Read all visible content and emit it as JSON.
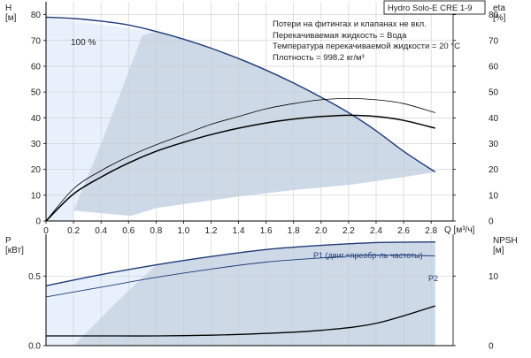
{
  "chart_data": {
    "type": "line",
    "title": "Hydro Solo-E CRE 1-9",
    "notes": [
      "Потери на фитингах и клапанах не вкл.",
      "Перекачиваемая жидкость = Вода",
      "Температура перекачиваемой жидкости = 20 °C",
      "Плотность = 998.2 кг/м³"
    ],
    "xlabel": "Q [м³/ч]",
    "xlim": [
      0,
      2.96
    ],
    "x_ticks": [
      "0",
      "0.2",
      "0.4",
      "0.6",
      "0.8",
      "1.0",
      "1.2",
      "1.4",
      "1.6",
      "1.8",
      "2.0",
      "2.2",
      "2.4",
      "2.6",
      "2.8"
    ],
    "x_tick_values": [
      0,
      0.2,
      0.4,
      0.6,
      0.8,
      1.0,
      1.2,
      1.4,
      1.6,
      1.8,
      2.0,
      2.2,
      2.4,
      2.6,
      2.8
    ],
    "grid": true,
    "colors": {
      "operating_area": "#cdd9e6",
      "low_flow_area": "#e8f1fb",
      "curve_dark": "#1e3a78",
      "curve_black": "#000000",
      "grid": "#cccccc"
    },
    "top_panel": {
      "left_axis": {
        "label_line1": "H",
        "label_line2": "[м]",
        "ylim": [
          0,
          85
        ],
        "ticks": [
          "0",
          "10",
          "20",
          "30",
          "40",
          "50",
          "60",
          "70",
          "80"
        ],
        "tick_values": [
          0,
          10,
          20,
          30,
          40,
          50,
          60,
          70,
          80
        ]
      },
      "right_axis": {
        "label_line1": "eta",
        "label_line2": "[%]",
        "ylim": [
          0,
          85
        ],
        "ticks": [
          "0",
          "10",
          "20",
          "30",
          "40",
          "50",
          "60",
          "70",
          "80"
        ],
        "tick_values": [
          0,
          10,
          20,
          30,
          40,
          50,
          60,
          70,
          80
        ]
      },
      "speed_label": "100 %",
      "series": [
        {
          "id": "head",
          "x": [
            0,
            0.2,
            0.4,
            0.6,
            0.8,
            1.0,
            1.2,
            1.4,
            1.6,
            1.8,
            2.0,
            2.2,
            2.4,
            2.6,
            2.83
          ],
          "y": [
            79,
            78.5,
            77.5,
            76,
            73.5,
            70.5,
            67,
            63,
            58.5,
            53.5,
            48,
            42,
            35,
            27,
            19
          ]
        },
        {
          "id": "eta_pump",
          "x": [
            0,
            0.2,
            0.4,
            0.6,
            0.8,
            1.0,
            1.2,
            1.4,
            1.6,
            1.8,
            2.0,
            2.2,
            2.4,
            2.6,
            2.83
          ],
          "y": [
            0,
            12.5,
            19.5,
            25,
            29.5,
            33.5,
            37.5,
            40.5,
            43.5,
            45.5,
            47,
            47.5,
            47,
            45.5,
            42
          ]
        },
        {
          "id": "eta_total",
          "x": [
            0,
            0.2,
            0.4,
            0.6,
            0.8,
            1.0,
            1.2,
            1.4,
            1.6,
            1.8,
            2.0,
            2.2,
            2.4,
            2.6,
            2.83
          ],
          "y": [
            0,
            10.5,
            17,
            22.5,
            27,
            30.5,
            33.5,
            36,
            38,
            39.5,
            40.5,
            41,
            40.5,
            39,
            36
          ]
        },
        {
          "id": "eta_pump_end",
          "x": [
            2.4,
            2.6,
            2.83
          ],
          "y": [
            47,
            45.5,
            42
          ]
        }
      ],
      "operating_area": {
        "x": [
          0,
          0.8,
          1.0,
          1.2,
          1.4,
          1.6,
          1.8,
          2.0,
          2.2,
          2.4,
          2.6,
          2.83,
          2.83,
          2.6,
          2.2,
          1.8,
          1.4,
          1.0,
          0.8,
          0.62,
          0.2,
          0.2,
          0.4,
          0.6,
          0.7,
          0.8
        ],
        "y": [
          79,
          73.5,
          70.5,
          67,
          63,
          58.5,
          53.5,
          48,
          42,
          35,
          27,
          19,
          19,
          17,
          14,
          12,
          9.5,
          6.5,
          5,
          2,
          4,
          4,
          30,
          58,
          72,
          73.5
        ]
      },
      "low_flow_area": {
        "x": [
          0,
          0.8,
          0.7,
          0.6,
          0.4,
          0.2,
          0.2,
          0
        ],
        "y": [
          79,
          73.5,
          72,
          58,
          30,
          4,
          0,
          0
        ]
      }
    },
    "bottom_panel": {
      "left_axis": {
        "label_line1": "P",
        "label_line2": "[кВт]",
        "ylim": [
          0,
          0.8
        ],
        "ticks": [
          "0.0",
          "0.5"
        ],
        "tick_values": [
          0,
          0.5
        ]
      },
      "right_axis": {
        "label_line1": "NPSH",
        "label_line2": "[м]",
        "ylim": [
          0,
          16
        ],
        "ticks": [
          "0",
          "10"
        ],
        "tick_values": [
          0,
          10
        ]
      },
      "series": [
        {
          "id": "P1",
          "label": "P1 (двиг.+преобр-ль частоты)",
          "x": [
            0,
            0.4,
            0.8,
            1.2,
            1.6,
            2.0,
            2.4,
            2.83
          ],
          "y": [
            0.43,
            0.51,
            0.58,
            0.64,
            0.69,
            0.72,
            0.74,
            0.745
          ]
        },
        {
          "id": "P2",
          "label": "P2",
          "x": [
            0,
            0.4,
            0.8,
            1.2,
            1.6,
            2.0,
            2.4,
            2.83
          ],
          "y": [
            0.35,
            0.42,
            0.49,
            0.55,
            0.6,
            0.63,
            0.65,
            0.645
          ]
        },
        {
          "id": "NPSH",
          "x": [
            0,
            0.4,
            0.8,
            1.2,
            1.6,
            2.0,
            2.4,
            2.83
          ],
          "y": [
            1.4,
            1.4,
            1.4,
            1.5,
            1.75,
            2.2,
            3.2,
            5.7
          ]
        }
      ],
      "operating_area": {
        "x": [
          0,
          0.8,
          1.2,
          1.6,
          2.0,
          2.4,
          2.83,
          2.83,
          0.8,
          0.2,
          0
        ],
        "y": [
          0.43,
          0.58,
          0.64,
          0.69,
          0.72,
          0.74,
          0.745,
          0,
          0,
          0,
          0
        ]
      },
      "low_flow_area": {
        "x": [
          0,
          0.8,
          0.5,
          0.2,
          0
        ],
        "y": [
          0.43,
          0.58,
          0.3,
          0,
          0
        ]
      }
    }
  }
}
